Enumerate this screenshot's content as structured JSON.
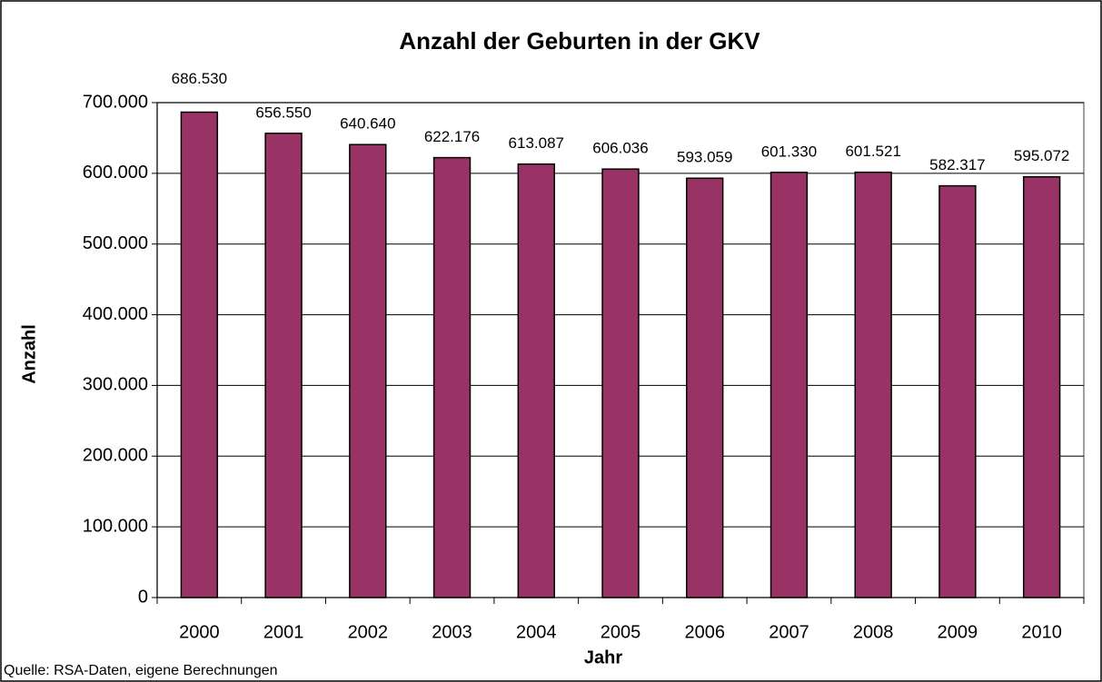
{
  "chart_data": {
    "type": "bar",
    "title": "Anzahl der Geburten in der GKV",
    "x_label": "Jahr",
    "y_label": "Anzahl",
    "source": "Quelle: RSA-Daten, eigene Berechnungen",
    "categories": [
      "2000",
      "2001",
      "2002",
      "2003",
      "2004",
      "2005",
      "2006",
      "2007",
      "2008",
      "2009",
      "2010"
    ],
    "values": [
      686530,
      656550,
      640640,
      622176,
      613087,
      606036,
      593059,
      601330,
      601521,
      582317,
      595072
    ],
    "value_labels": [
      "686.530",
      "656.550",
      "640.640",
      "622.176",
      "613.087",
      "606.036",
      "593.059",
      "601.330",
      "601.521",
      "582.317",
      "595.072"
    ],
    "color": "#993366",
    "ylim": [
      0,
      700000
    ],
    "yticks": [
      0,
      {
        "value": 100000,
        "label": "100.000"
      },
      {
        "value": 200000,
        "label": "200.000"
      },
      {
        "value": 300000,
        "label": "300.000"
      },
      {
        "value": 400000,
        "label": "400.000"
      },
      {
        "value": 500000,
        "label": "500.000"
      },
      {
        "value": 600000,
        "label": "600.000"
      },
      {
        "value": 700000,
        "label": "700.000"
      }
    ],
    "grid": true
  }
}
